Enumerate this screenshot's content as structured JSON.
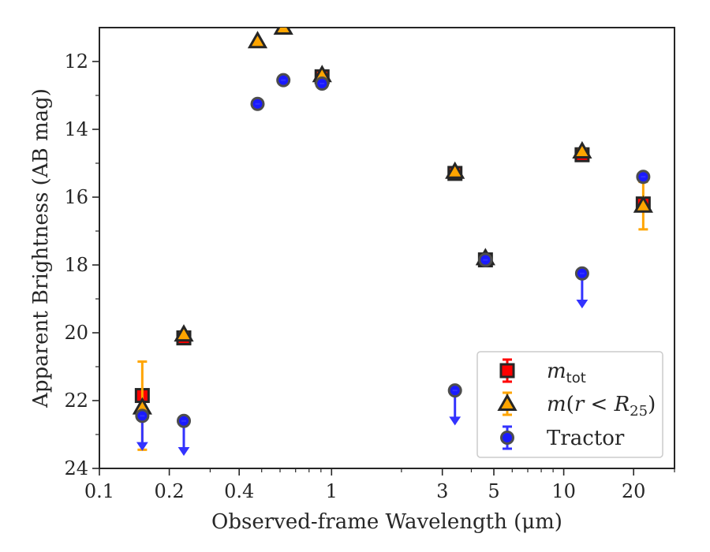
{
  "chart_data": {
    "type": "scatter",
    "title": "",
    "xlabel": "Observed-frame Wavelength (μm)",
    "ylabel": "Apparent Brightness (AB mag)",
    "xscale": "log",
    "xlim": [
      0.1,
      30
    ],
    "ylim": [
      24,
      11
    ],
    "y_inverted": true,
    "grid": false,
    "legend_position": "lower-right",
    "x_ticks": [
      {
        "value": 0.1,
        "label": "0.1"
      },
      {
        "value": 0.2,
        "label": "0.2"
      },
      {
        "value": 0.4,
        "label": "0.4"
      },
      {
        "value": 1,
        "label": "1"
      },
      {
        "value": 3,
        "label": "3"
      },
      {
        "value": 5,
        "label": "5"
      },
      {
        "value": 10,
        "label": "10"
      },
      {
        "value": 20,
        "label": "20"
      }
    ],
    "y_ticks": [
      {
        "value": 12,
        "label": "12"
      },
      {
        "value": 14,
        "label": "14"
      },
      {
        "value": 16,
        "label": "16"
      },
      {
        "value": 18,
        "label": "18"
      },
      {
        "value": 20,
        "label": "20"
      },
      {
        "value": 22,
        "label": "22"
      },
      {
        "value": 24,
        "label": "24"
      }
    ],
    "series": [
      {
        "name": "m_tot",
        "marker": "square",
        "color": "#ff0000",
        "errorbar_color": "#ff0000",
        "points": [
          {
            "x": 0.153,
            "y": 21.85,
            "yerr": 0.1
          },
          {
            "x": 0.231,
            "y": 20.15,
            "yerr": 0.05
          },
          {
            "x": 0.91,
            "y": 12.45,
            "yerr": 0.05
          },
          {
            "x": 3.4,
            "y": 15.3,
            "yerr": 0.05
          },
          {
            "x": 4.6,
            "y": 17.85,
            "yerr": 0.05
          },
          {
            "x": 12.0,
            "y": 14.75,
            "yerr": 0.05
          },
          {
            "x": 22.0,
            "y": 16.2,
            "yerr": 0.15
          }
        ]
      },
      {
        "name": "m(r < R25)",
        "marker": "triangle",
        "color": "#ffa500",
        "errorbar_color": "#ffa500",
        "points": [
          {
            "x": 0.153,
            "y": 22.2,
            "yerr_low": 1.35,
            "yerr_high": 1.25
          },
          {
            "x": 0.231,
            "y": 20.05,
            "yerr": 0.05
          },
          {
            "x": 0.48,
            "y": 11.4,
            "yerr": 0.0
          },
          {
            "x": 0.62,
            "y": 11.0,
            "yerr": 0.0
          },
          {
            "x": 0.91,
            "y": 12.4,
            "yerr": 0.05
          },
          {
            "x": 3.4,
            "y": 15.25,
            "yerr": 0.05
          },
          {
            "x": 4.6,
            "y": 17.8,
            "yerr": 0.05
          },
          {
            "x": 12.0,
            "y": 14.65,
            "yerr": 0.05
          },
          {
            "x": 22.0,
            "y": 16.25,
            "yerr": 0.7
          }
        ]
      },
      {
        "name": "Tractor",
        "marker": "circle",
        "color": "#1a1aff",
        "errorbar_color": "#3333ff",
        "points": [
          {
            "x": 0.153,
            "y": 22.45,
            "upper_limit": true
          },
          {
            "x": 0.231,
            "y": 22.6,
            "upper_limit": true
          },
          {
            "x": 0.48,
            "y": 13.25
          },
          {
            "x": 0.62,
            "y": 12.55
          },
          {
            "x": 0.91,
            "y": 12.65
          },
          {
            "x": 3.4,
            "y": 21.7,
            "upper_limit": true
          },
          {
            "x": 4.6,
            "y": 17.85
          },
          {
            "x": 12.0,
            "y": 18.25,
            "upper_limit": true
          },
          {
            "x": 22.0,
            "y": 15.4,
            "yerr": 0.05
          }
        ]
      }
    ]
  }
}
